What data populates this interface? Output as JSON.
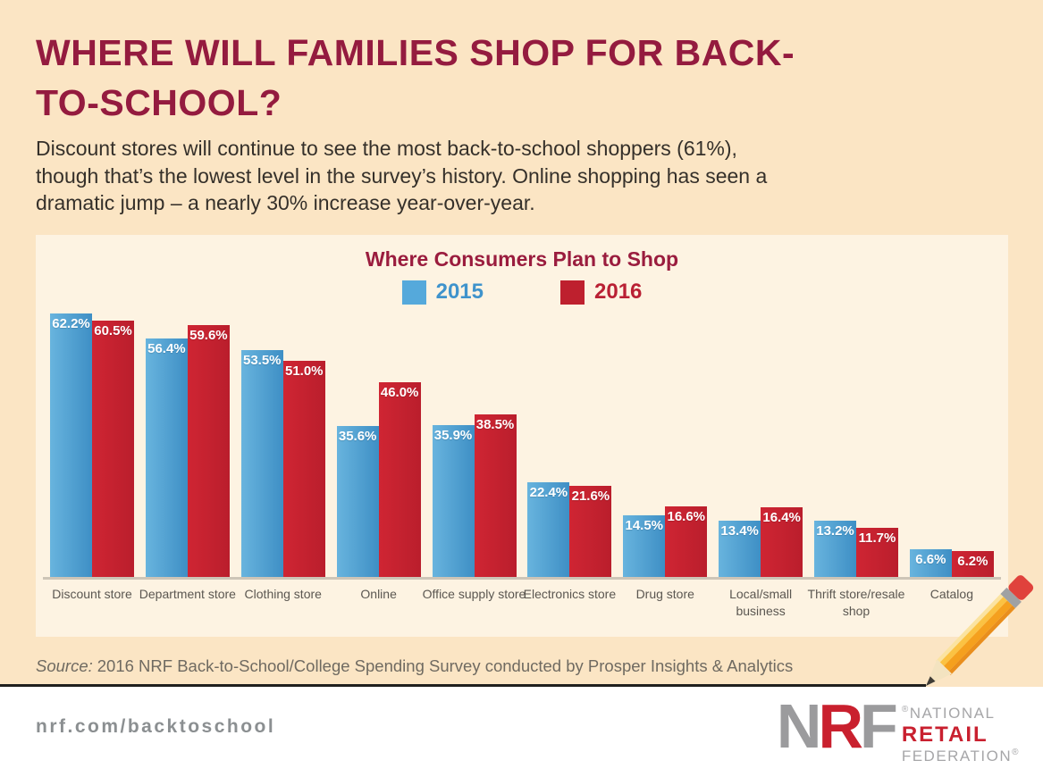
{
  "page": {
    "title": "WHERE WILL FAMILIES SHOP FOR BACK-TO-SCHOOL?",
    "subtitle": "Discount stores will continue to see the most back-to-school shoppers (61%),\nthough that’s the lowest level in the survey’s history. Online shopping has seen a\ndramatic jump – a nearly 30% increase year-over-year.",
    "source_prefix": "Source:",
    "source_text": "2016 NRF Back-to-School/College Spending Survey conducted by Prosper Insights & Analytics",
    "footer_url": "nrf.com/backtoschool"
  },
  "logo": {
    "n": "N",
    "r": "R",
    "f": "F",
    "reg": "®",
    "line1": "NATIONAL",
    "line2": "RETAIL",
    "line3": "FEDERATION",
    "reg2": "®"
  },
  "colors": {
    "accent_maroon": "#941b3f",
    "page_background": "#fbe5c4",
    "panel_background": "#fdf3e2",
    "bar_2015": "#4a9fd5",
    "bar_2016": "#c0202e",
    "legend_2015_text": "#3f93cc",
    "legend_2016_text": "#b92034",
    "axis_line": "#cdc5b7"
  },
  "chart_data": {
    "type": "bar",
    "title": "Where Consumers Plan to Shop",
    "categories": [
      "Discount store",
      "Department store",
      "Clothing store",
      "Online",
      "Office supply store",
      "Electronics store",
      "Drug store",
      "Local/small business",
      "Thrift store/resale shop",
      "Catalog"
    ],
    "series": [
      {
        "name": "2015",
        "color": "#55a9db",
        "text_color": "#3f93cc",
        "values": [
          62.2,
          56.4,
          53.5,
          35.6,
          35.9,
          22.4,
          14.5,
          13.4,
          13.2,
          6.6
        ]
      },
      {
        "name": "2016",
        "color": "#be202e",
        "text_color": "#b92034",
        "values": [
          60.5,
          59.6,
          51.0,
          46.0,
          38.5,
          21.6,
          16.6,
          16.4,
          11.7,
          6.2
        ]
      }
    ],
    "value_suffix": "%",
    "value_labels": "inside-top",
    "xlabel": "",
    "ylabel": "",
    "ylim": [
      0,
      65
    ],
    "grid": false,
    "legend_position": "top"
  }
}
